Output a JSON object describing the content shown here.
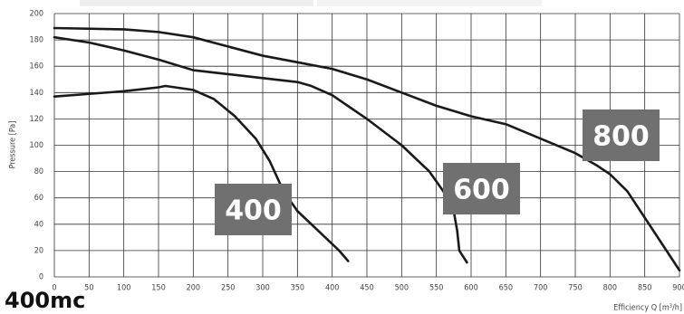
{
  "chart_data": {
    "type": "line",
    "title": "400mc",
    "ylabel": "Pressure [Pa]",
    "xlabel": "Efficiency Q [m³/h]",
    "xlim": [
      0,
      900
    ],
    "ylim": [
      0,
      200
    ],
    "xticks": [
      0,
      50,
      100,
      150,
      200,
      250,
      300,
      350,
      400,
      450,
      500,
      550,
      600,
      650,
      700,
      750,
      800,
      850,
      900
    ],
    "yticks": [
      0,
      20,
      40,
      60,
      80,
      100,
      120,
      140,
      160,
      180,
      200
    ],
    "grid": true,
    "series": [
      {
        "name": "400",
        "color": "#1a1a1a",
        "x": [
          0,
          50,
          100,
          150,
          160,
          200,
          230,
          260,
          290,
          310,
          330,
          350,
          380,
          410,
          423
        ],
        "values": [
          137,
          139,
          141,
          144,
          145,
          142,
          135,
          122,
          105,
          88,
          65,
          50,
          35,
          20,
          12
        ]
      },
      {
        "name": "600",
        "color": "#1a1a1a",
        "x": [
          0,
          50,
          100,
          150,
          200,
          250,
          300,
          350,
          370,
          400,
          450,
          500,
          540,
          560,
          575,
          580,
          583,
          594
        ],
        "values": [
          182,
          178,
          172,
          165,
          157,
          154,
          151,
          148,
          145,
          138,
          120,
          100,
          80,
          65,
          50,
          35,
          20,
          11
        ]
      },
      {
        "name": "800",
        "color": "#1a1a1a",
        "x": [
          0,
          100,
          150,
          200,
          250,
          300,
          350,
          400,
          450,
          500,
          550,
          600,
          650,
          700,
          750,
          780,
          800,
          825,
          850,
          875,
          900
        ],
        "values": [
          189,
          188,
          186,
          182,
          175,
          168,
          163,
          158,
          150,
          140,
          130,
          122,
          116,
          105,
          94,
          85,
          78,
          65,
          45,
          25,
          5
        ]
      }
    ]
  }
}
